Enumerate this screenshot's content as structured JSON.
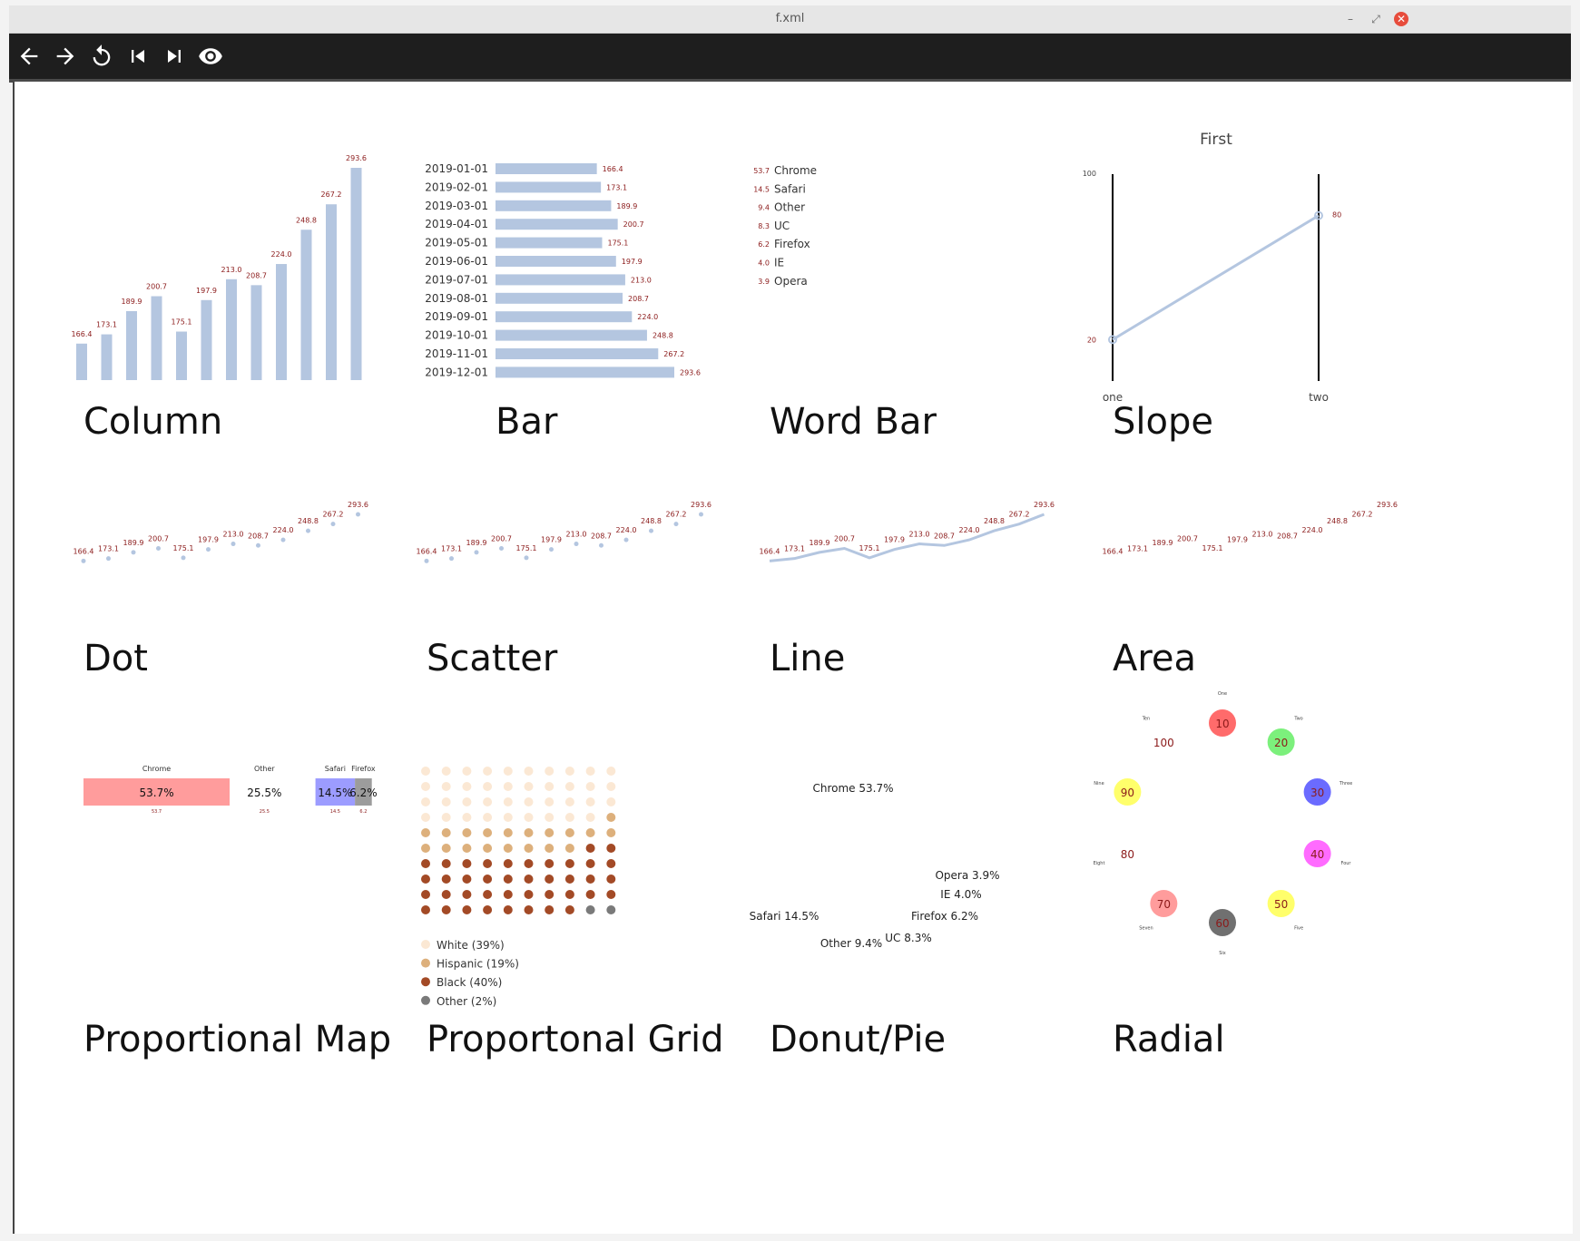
{
  "window": {
    "title": "f.xml"
  },
  "toolbar": {
    "buttons": [
      "back-icon",
      "forward-icon",
      "reload-icon",
      "skip-previous-icon",
      "skip-next-icon",
      "eye-icon"
    ]
  },
  "colors": {
    "bar": "#b4c6e0",
    "label": "#8b1a1a",
    "text": "#333333"
  },
  "panels": {
    "column": {
      "title": "Column"
    },
    "bar": {
      "title": "Bar"
    },
    "wordbar": {
      "title": "Word Bar"
    },
    "slope": {
      "title": "Slope"
    },
    "dot": {
      "title": "Dot"
    },
    "scatter": {
      "title": "Scatter"
    },
    "line": {
      "title": "Line"
    },
    "area": {
      "title": "Area"
    },
    "propmap": {
      "title": "Proportional Map"
    },
    "propgrid": {
      "title": "Proportonal Grid"
    },
    "donut": {
      "title": "Donut/Pie"
    },
    "radial": {
      "title": "Radial"
    }
  },
  "chart_data": [
    {
      "id": "column",
      "type": "bar",
      "orientation": "vertical",
      "values": [
        166.4,
        173.1,
        189.9,
        200.7,
        175.1,
        197.9,
        213.0,
        208.7,
        224.0,
        248.8,
        267.2,
        293.6
      ],
      "labels": [
        "166.4",
        "173.1",
        "189.9",
        "200.7",
        "175.1",
        "197.9",
        "213.0",
        "208.7",
        "224.0",
        "248.8",
        "267.2",
        "293.6"
      ]
    },
    {
      "id": "bar",
      "type": "bar",
      "orientation": "horizontal",
      "categories": [
        "2019-01-01",
        "2019-02-01",
        "2019-03-01",
        "2019-04-01",
        "2019-05-01",
        "2019-06-01",
        "2019-07-01",
        "2019-08-01",
        "2019-09-01",
        "2019-10-01",
        "2019-11-01",
        "2019-12-01"
      ],
      "values": [
        166.4,
        173.1,
        189.9,
        200.7,
        175.1,
        197.9,
        213.0,
        208.7,
        224.0,
        248.8,
        267.2,
        293.6
      ],
      "labels": [
        "166.4",
        "173.1",
        "189.9",
        "200.7",
        "175.1",
        "197.9",
        "213.0",
        "208.7",
        "224.0",
        "248.8",
        "267.2",
        "293.6"
      ]
    },
    {
      "id": "wordbar",
      "type": "table",
      "categories": [
        "Chrome",
        "Safari",
        "Other",
        "UC",
        "Firefox",
        "IE",
        "Opera"
      ],
      "values": [
        53.7,
        14.5,
        9.4,
        8.3,
        6.2,
        4.0,
        3.9
      ],
      "labels": [
        "53.7",
        "14.5",
        "9.4",
        "8.3",
        "6.2",
        "4.0",
        "3.9"
      ]
    },
    {
      "id": "slope",
      "type": "line",
      "title": "First",
      "categories": [
        "one",
        "two"
      ],
      "values": [
        20,
        80
      ],
      "labels": [
        "20",
        "80"
      ],
      "ytick": "100"
    },
    {
      "id": "dot",
      "type": "scatter",
      "values": [
        166.4,
        173.1,
        189.9,
        200.7,
        175.1,
        197.9,
        213.0,
        208.7,
        224.0,
        248.8,
        267.2,
        293.6
      ],
      "labels": [
        "166.4",
        "173.1",
        "189.9",
        "200.7",
        "175.1",
        "197.9",
        "213.0",
        "208.7",
        "224.0",
        "248.8",
        "267.2",
        "293.6"
      ]
    },
    {
      "id": "scatter",
      "type": "scatter",
      "values": [
        166.4,
        173.1,
        189.9,
        200.7,
        175.1,
        197.9,
        213.0,
        208.7,
        224.0,
        248.8,
        267.2,
        293.6
      ],
      "labels": [
        "166.4",
        "173.1",
        "189.9",
        "200.7",
        "175.1",
        "197.9",
        "213.0",
        "208.7",
        "224.0",
        "248.8",
        "267.2",
        "293.6"
      ]
    },
    {
      "id": "line",
      "type": "line",
      "values": [
        166.4,
        173.1,
        189.9,
        200.7,
        175.1,
        197.9,
        213.0,
        208.7,
        224.0,
        248.8,
        267.2,
        293.6
      ],
      "labels": [
        "166.4",
        "173.1",
        "189.9",
        "200.7",
        "175.1",
        "197.9",
        "213.0",
        "208.7",
        "224.0",
        "248.8",
        "267.2",
        "293.6"
      ]
    },
    {
      "id": "area",
      "type": "area",
      "values": [
        166.4,
        173.1,
        189.9,
        200.7,
        175.1,
        197.9,
        213.0,
        208.7,
        224.0,
        248.8,
        267.2,
        293.6
      ],
      "labels": [
        "166.4",
        "173.1",
        "189.9",
        "200.7",
        "175.1",
        "197.9",
        "213.0",
        "208.7",
        "224.0",
        "248.8",
        "267.2",
        "293.6"
      ]
    },
    {
      "id": "propmap",
      "type": "bar",
      "categories": [
        "Chrome",
        "Other",
        "Safari",
        "Firefox"
      ],
      "values": [
        53.7,
        25.5,
        14.5,
        6.2
      ],
      "pct_labels": [
        "53.7%",
        "25.5%",
        "14.5%",
        "6.2%"
      ],
      "small_labels": [
        "53.7",
        "25.5",
        "14.5",
        "6.2"
      ],
      "colors": [
        "#ff9c9c",
        "#ffffff",
        "#9c9cff",
        "#9c9c9c"
      ]
    },
    {
      "id": "propgrid",
      "type": "table",
      "series": [
        {
          "name": "White (39%)",
          "value": 39,
          "color": "#fbe8d4"
        },
        {
          "name": "Hispanic (19%)",
          "value": 19,
          "color": "#ddb07c"
        },
        {
          "name": "Black (40%)",
          "value": 40,
          "color": "#a34a26"
        },
        {
          "name": "Other (2%)",
          "value": 2,
          "color": "#7a7a7a"
        }
      ]
    },
    {
      "id": "donut",
      "type": "pie",
      "labels": [
        "Chrome 53.7%",
        "Opera 3.9%",
        "IE 4.0%",
        "Firefox 6.2%",
        "UC 8.3%",
        "Other 9.4%",
        "Safari 14.5%"
      ]
    },
    {
      "id": "radial",
      "type": "scatter",
      "categories": [
        "One",
        "Two",
        "Three",
        "Four",
        "Five",
        "Six",
        "Seven",
        "Eight",
        "Nine",
        "Ten"
      ],
      "values": [
        10,
        20,
        30,
        40,
        50,
        60,
        70,
        80,
        90,
        100
      ],
      "labels": [
        "10",
        "20",
        "30",
        "40",
        "50",
        "60",
        "70",
        "80",
        "90",
        "100"
      ],
      "colors": [
        "#ff6b6b",
        "#7cf07c",
        "#6b6bff",
        "#ff6bff",
        "#ffff6b",
        "#707070",
        "#ff9c9c",
        "#ffffff",
        "#ffff6b",
        "#ffffff"
      ]
    }
  ]
}
